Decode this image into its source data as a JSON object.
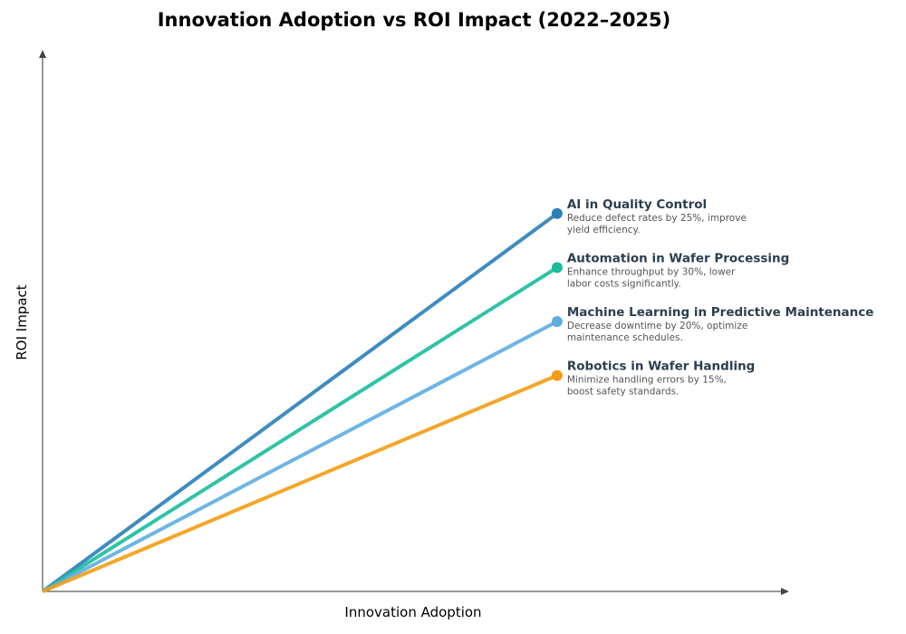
{
  "chart_data": {
    "type": "line",
    "title": "Innovation Adoption vs ROI Impact (2022–2025)",
    "xlabel": "Innovation Adoption",
    "ylabel": "ROI Impact",
    "xlim": [
      0,
      1
    ],
    "ylim": [
      0,
      1
    ],
    "grid": false,
    "ticks": false,
    "series": [
      {
        "name": "AI in Quality Control",
        "description": [
          "Reduce defect rates by 25%, improve",
          "yield efficiency."
        ],
        "color": "#2980b9",
        "x": [
          0,
          0.69
        ],
        "y": [
          0,
          0.7
        ]
      },
      {
        "name": "Automation in Wafer Processing",
        "description": [
          "Enhance throughput by 30%, lower",
          "labor costs significantly."
        ],
        "color": "#1abc9c",
        "x": [
          0,
          0.69
        ],
        "y": [
          0,
          0.6
        ]
      },
      {
        "name": "Machine Learning in Predictive Maintenance",
        "description": [
          "Decrease downtime by 20%, optimize",
          "maintenance schedules."
        ],
        "color": "#5dade2",
        "x": [
          0,
          0.69
        ],
        "y": [
          0,
          0.5
        ]
      },
      {
        "name": "Robotics in Wafer Handling",
        "description": [
          "Minimize handling errors by 15%,",
          "boost safety standards."
        ],
        "color": "#f39c12",
        "x": [
          0,
          0.69
        ],
        "y": [
          0,
          0.4
        ]
      }
    ]
  }
}
